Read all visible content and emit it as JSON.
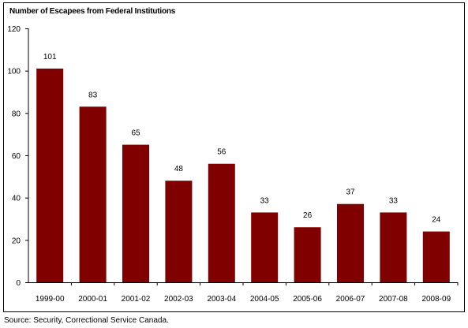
{
  "chart_data": {
    "type": "bar",
    "title": "Number of Escapees from Federal Institutions",
    "xlabel": "",
    "ylabel": "",
    "categories": [
      "1999-00",
      "2000-01",
      "2001-02",
      "2002-03",
      "2003-04",
      "2004-05",
      "2005-06",
      "2006-07",
      "2007-08",
      "2008-09"
    ],
    "values": [
      101,
      83,
      65,
      48,
      56,
      33,
      26,
      37,
      33,
      24
    ],
    "ylim": [
      0,
      120
    ],
    "yticks": [
      "0",
      "20",
      "40",
      "60",
      "80",
      "100",
      "120"
    ],
    "data_labels": true,
    "grid": false,
    "legend": "none",
    "bar_color": "#800000"
  },
  "source": "Source:  Security, Correctional Service Canada."
}
